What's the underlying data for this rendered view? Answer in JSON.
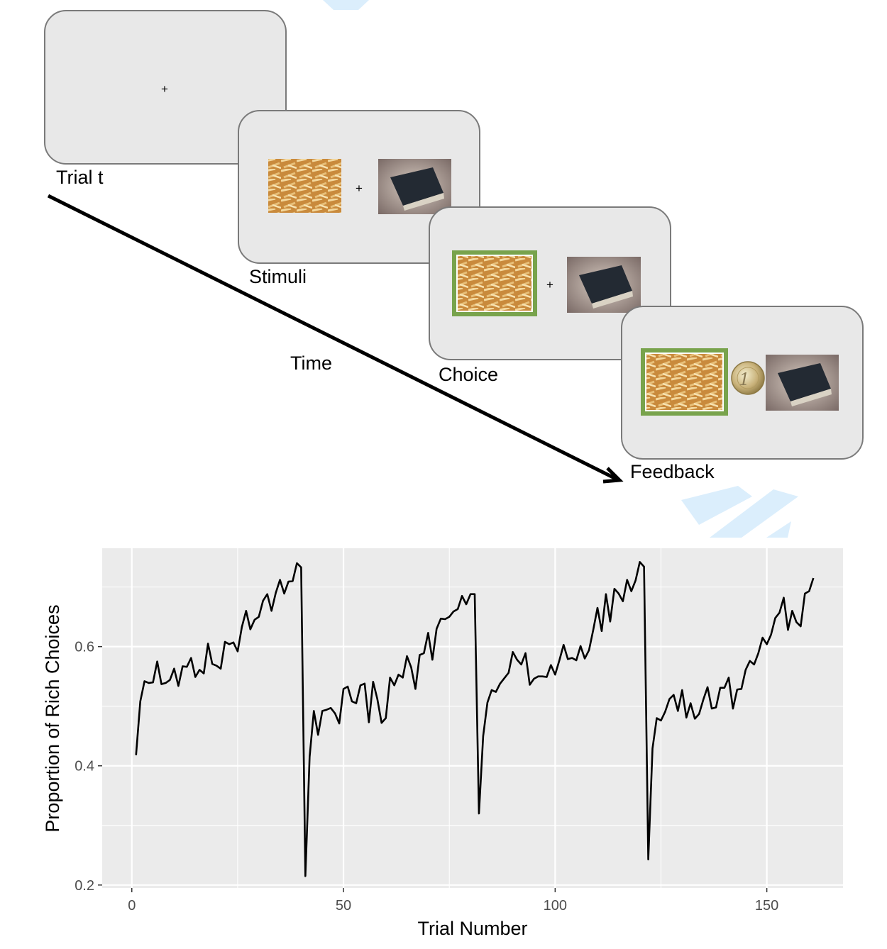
{
  "diagram": {
    "panels": [
      {
        "label": "Trial t"
      },
      {
        "label": "Stimuli"
      },
      {
        "label": "Choice"
      },
      {
        "label": "Feedback"
      }
    ],
    "time_label": "Time",
    "fixation": "+",
    "coin_text": "1"
  },
  "chart_data": {
    "type": "line",
    "title": "",
    "xlabel": "Trial Number",
    "ylabel": "Proportion of Rich Choices",
    "xlim": [
      -7,
      168
    ],
    "ylim": [
      0.195,
      0.765
    ],
    "xticks": [
      0,
      50,
      100,
      150
    ],
    "yticks": [
      0.2,
      0.4,
      0.6
    ],
    "grid": true,
    "background": "#ebebeb",
    "line_color": "#000000",
    "series": [
      {
        "values": [
          0.418,
          0.508,
          0.542,
          0.539,
          0.54,
          0.575,
          0.537,
          0.539,
          0.544,
          0.563,
          0.534,
          0.567,
          0.566,
          0.581,
          0.549,
          0.561,
          0.555,
          0.605,
          0.571,
          0.568,
          0.563,
          0.608,
          0.604,
          0.607,
          0.592,
          0.633,
          0.66,
          0.629,
          0.645,
          0.65,
          0.677,
          0.688,
          0.66,
          0.69,
          0.712,
          0.689,
          0.709,
          0.71,
          0.74,
          0.733,
          0.215,
          0.415,
          0.492,
          0.452,
          0.492,
          0.494,
          0.497,
          0.488,
          0.471,
          0.529,
          0.533,
          0.508,
          0.505,
          0.535,
          0.538,
          0.473,
          0.541,
          0.512,
          0.472,
          0.48,
          0.548,
          0.535,
          0.553,
          0.548,
          0.584,
          0.565,
          0.529,
          0.586,
          0.589,
          0.623,
          0.578,
          0.63,
          0.647,
          0.646,
          0.65,
          0.659,
          0.663,
          0.685,
          0.671,
          0.688,
          0.688,
          0.32,
          0.45,
          0.506,
          0.527,
          0.524,
          0.538,
          0.547,
          0.556,
          0.591,
          0.578,
          0.57,
          0.589,
          0.536,
          0.546,
          0.55,
          0.55,
          0.549,
          0.569,
          0.553,
          0.577,
          0.603,
          0.579,
          0.581,
          0.577,
          0.601,
          0.58,
          0.594,
          0.628,
          0.665,
          0.626,
          0.688,
          0.642,
          0.697,
          0.689,
          0.676,
          0.712,
          0.693,
          0.711,
          0.742,
          0.734,
          0.243,
          0.429,
          0.48,
          0.476,
          0.491,
          0.512,
          0.519,
          0.492,
          0.527,
          0.481,
          0.505,
          0.479,
          0.487,
          0.511,
          0.532,
          0.496,
          0.498,
          0.531,
          0.531,
          0.548,
          0.496,
          0.528,
          0.529,
          0.561,
          0.576,
          0.57,
          0.589,
          0.615,
          0.604,
          0.62,
          0.648,
          0.657,
          0.682,
          0.628,
          0.66,
          0.641,
          0.634,
          0.689,
          0.693,
          0.715
        ]
      }
    ]
  }
}
